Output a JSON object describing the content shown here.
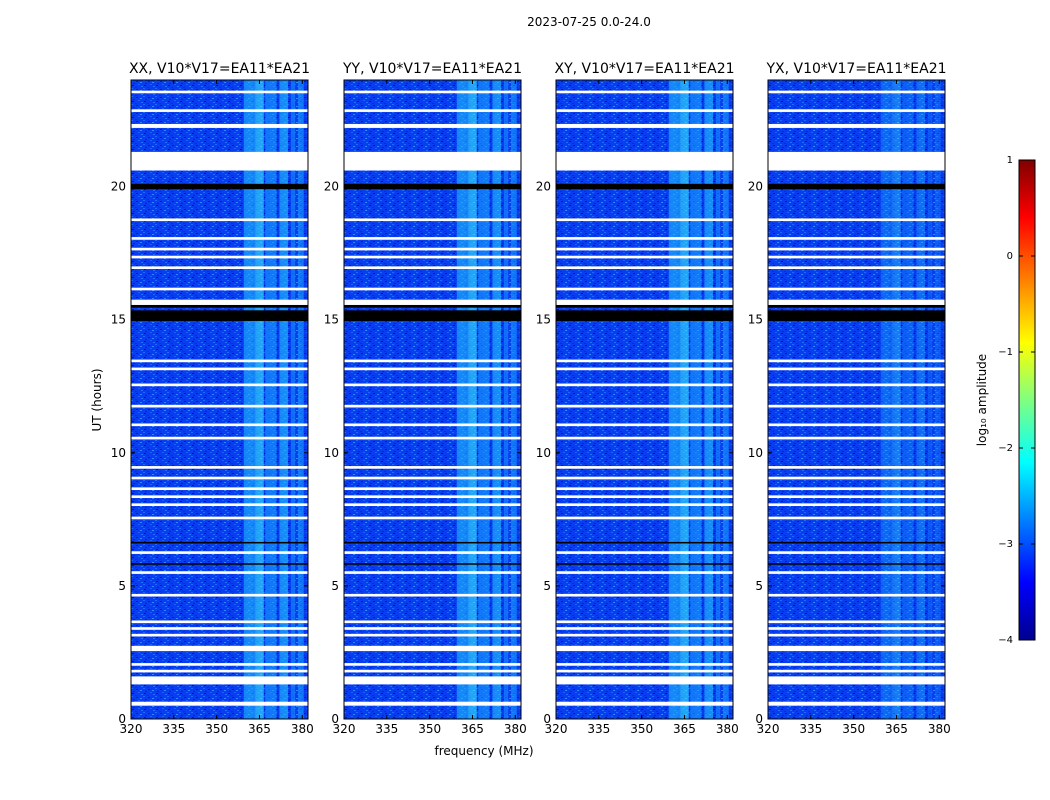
{
  "figure_title": "2023-07-25 0.0-24.0",
  "chart_data": {
    "type": "heatmap",
    "title": "2023-07-25 0.0-24.0",
    "xlabel": "frequency (MHz)",
    "ylabel": "UT (hours)",
    "xlim": [
      320,
      382
    ],
    "ylim": [
      0,
      24
    ],
    "x_ticks": [
      320,
      335,
      350,
      365,
      380
    ],
    "y_ticks": [
      0,
      5,
      10,
      15,
      20
    ],
    "panels": [
      {
        "title": "XX, V10*V17=EA11*EA21",
        "show_ylabel": true
      },
      {
        "title": "YY, V10*V17=EA11*EA21",
        "show_ylabel": false
      },
      {
        "title": "XY, V10*V17=EA11*EA21",
        "show_ylabel": false
      },
      {
        "title": "YX, V10*V17=EA11*EA21",
        "show_ylabel": false
      }
    ],
    "rfi_band_mhz": [
      [
        359.5,
        363.5
      ],
      [
        363.5,
        366.5
      ],
      [
        367.0,
        371.0
      ],
      [
        372.0,
        375.0
      ],
      [
        376.0,
        377.5
      ],
      [
        378.5,
        380.5
      ]
    ],
    "flagged_hours_white": [
      [
        0.5,
        0.65
      ],
      [
        1.3,
        1.6
      ],
      [
        1.75,
        1.85
      ],
      [
        2.0,
        2.1
      ],
      [
        2.55,
        2.75
      ],
      [
        3.1,
        3.2
      ],
      [
        3.35,
        3.45
      ],
      [
        3.6,
        3.7
      ],
      [
        4.6,
        4.7
      ],
      [
        5.45,
        5.55
      ],
      [
        6.2,
        6.3
      ],
      [
        7.5,
        7.6
      ],
      [
        8.0,
        8.1
      ],
      [
        8.3,
        8.4
      ],
      [
        8.6,
        8.7
      ],
      [
        9.0,
        9.1
      ],
      [
        9.4,
        9.5
      ],
      [
        10.5,
        10.6
      ],
      [
        11.0,
        11.1
      ],
      [
        11.7,
        11.8
      ],
      [
        12.5,
        12.6
      ],
      [
        13.1,
        13.2
      ],
      [
        13.4,
        13.5
      ],
      [
        15.55,
        15.75
      ],
      [
        16.1,
        16.2
      ],
      [
        16.9,
        17.0
      ],
      [
        17.3,
        17.4
      ],
      [
        17.6,
        17.7
      ],
      [
        18.0,
        18.1
      ],
      [
        18.7,
        18.8
      ],
      [
        20.6,
        21.3
      ],
      [
        22.2,
        22.35
      ],
      [
        22.8,
        22.9
      ],
      [
        23.5,
        23.6
      ]
    ],
    "flagged_hours_black": [
      [
        14.95,
        15.35
      ],
      [
        15.45,
        15.55
      ],
      [
        19.9,
        20.1
      ],
      [
        6.6,
        6.65
      ],
      [
        5.8,
        5.85
      ]
    ],
    "colorbar": {
      "label": "log₁₀ amplitude",
      "range": [
        -4,
        1
      ],
      "ticks": [
        "1",
        "0",
        "−1",
        "−2",
        "−3",
        "−4"
      ],
      "colormap": [
        "#00008f",
        "#0000ff",
        "#0080ff",
        "#00ffff",
        "#80ff80",
        "#ffff00",
        "#ff8000",
        "#ff0000",
        "#800000"
      ]
    },
    "background_level_log10": -3.4
  }
}
